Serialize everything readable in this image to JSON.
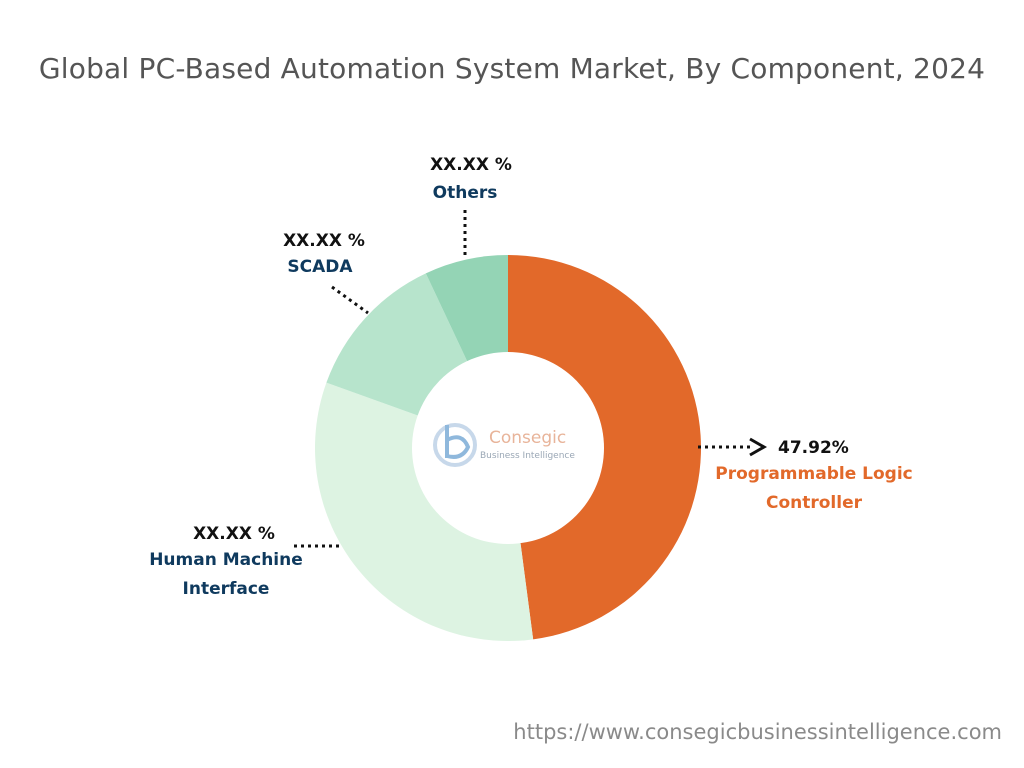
{
  "title": "Global PC-Based Automation System Market, By Component, 2024",
  "source_url": "https://www.consegicbusinessintelligence.com",
  "logo": {
    "name": "Consegic",
    "tagline": "Business Intelligence"
  },
  "chart_data": {
    "type": "pie",
    "title": "Global PC-Based Automation System Market, By Component, 2024",
    "donut": true,
    "categories": [
      "Programmable Logic Controller",
      "Human Machine Interface",
      "SCADA",
      "Others"
    ],
    "values": [
      47.92,
      32.58,
      12.5,
      7.0
    ],
    "value_labels": [
      "47.92%",
      "XX.XX %",
      "XX.XX %",
      "XX.XX %"
    ],
    "name_lines": [
      [
        "Programmable Logic",
        "Controller"
      ],
      [
        "Human Machine",
        "Interface"
      ],
      [
        "SCADA"
      ],
      [
        "Others"
      ]
    ],
    "colors": [
      "#e2692a",
      "#ddf3e2",
      "#b7e4cc",
      "#94d4b5"
    ],
    "label_colors": [
      "#e2692a",
      "#0f3a5e",
      "#0f3a5e",
      "#0f3a5e"
    ]
  }
}
